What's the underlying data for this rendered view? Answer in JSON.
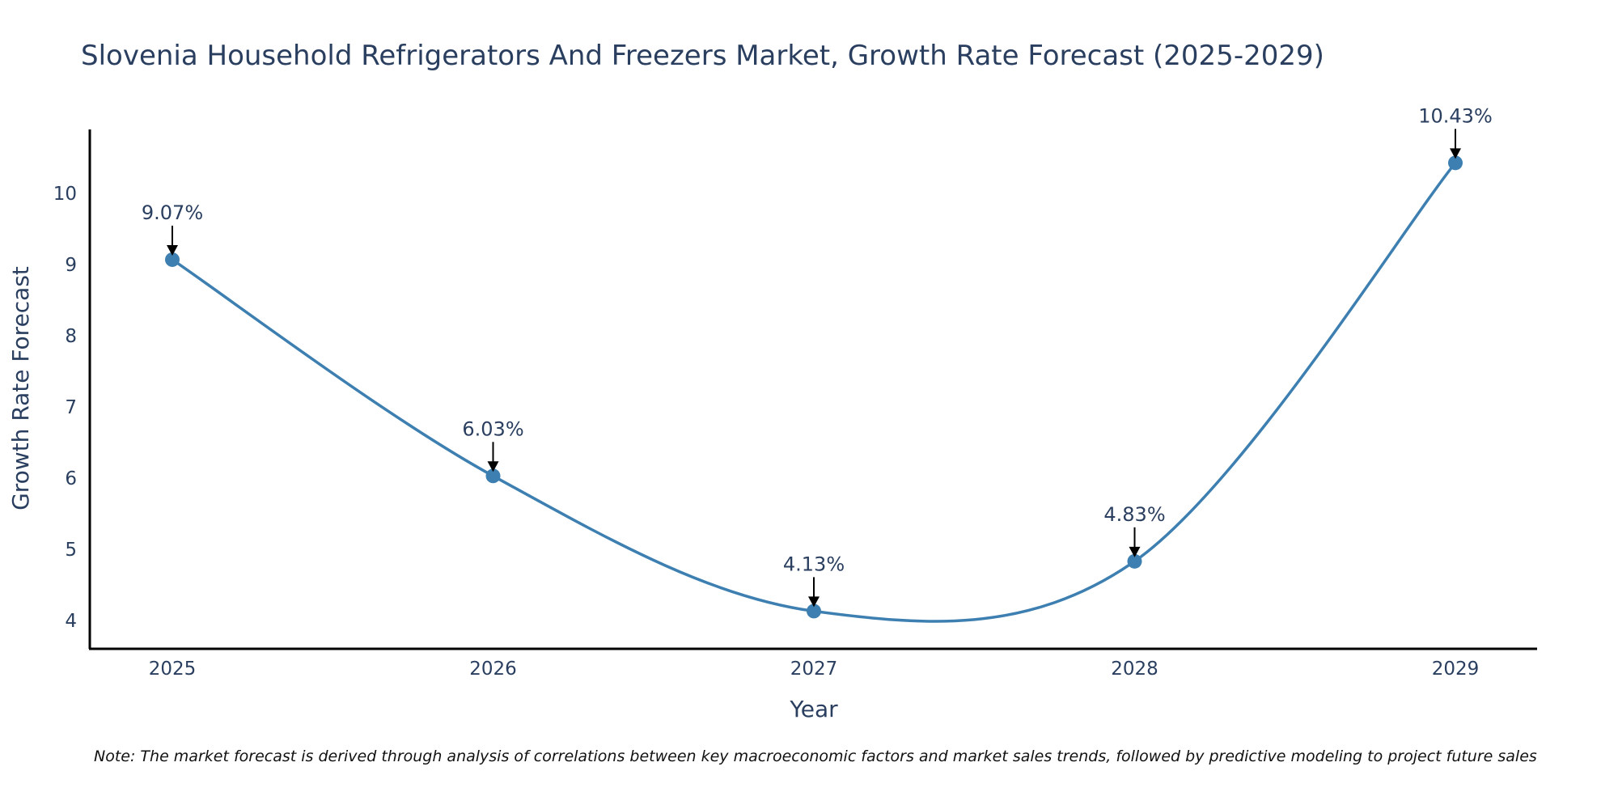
{
  "chart_data": {
    "type": "line",
    "title": "Slovenia Household Refrigerators And Freezers Market, Growth Rate Forecast (2025-2029)",
    "xlabel": "Year",
    "ylabel": "Growth Rate Forecast",
    "categories": [
      "2025",
      "2026",
      "2027",
      "2028",
      "2029"
    ],
    "values": [
      9.07,
      6.03,
      4.13,
      4.83,
      10.43
    ],
    "data_labels": [
      "9.07%",
      "6.03%",
      "4.13%",
      "4.83%",
      "10.43%"
    ],
    "y_ticks": [
      4,
      5,
      6,
      7,
      8,
      9,
      10
    ],
    "y_tick_labels": [
      "4",
      "5",
      "6",
      "7",
      "8",
      "9",
      "10"
    ],
    "ylim": [
      3.6,
      10.9
    ],
    "line_shape": "spline",
    "grid": false,
    "note": "Note: The market forecast is derived through analysis of correlations between key macroeconomic factors and market sales trends, followed by predictive modeling to project future sales",
    "colors": {
      "line": "#3d7fb0",
      "marker": "#3d7fb0",
      "arrow": "#000000",
      "text": "#2a3f5f"
    }
  }
}
